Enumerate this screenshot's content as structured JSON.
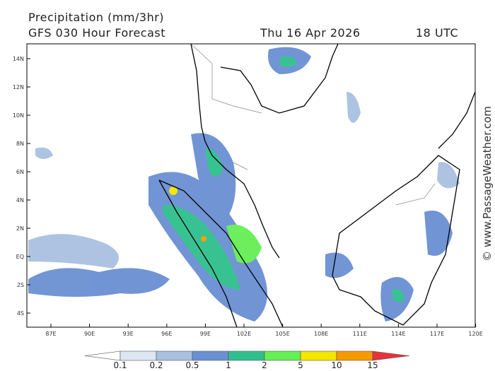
{
  "header": {
    "title": "Precipitation (mm/3hr)",
    "model": "GFS 030 Hour Forecast",
    "date": "Thu 16 Apr 2026",
    "time": "18 UTC"
  },
  "lat_labels": [
    "14N",
    "12N",
    "10N",
    "8N",
    "6N",
    "4N",
    "2N",
    "EQ",
    "2S",
    "4S"
  ],
  "lon_labels": [
    "87E",
    "90E",
    "93E",
    "96E",
    "99E",
    "102E",
    "105E",
    "108E",
    "111E",
    "114E",
    "117E",
    "120E"
  ],
  "colorbar": {
    "labels": [
      "0.1",
      "0.2",
      "0.5",
      "1",
      "2",
      "5",
      "10",
      "15"
    ],
    "colors": [
      "#ffffff",
      "#dde7f3",
      "#a9c0e0",
      "#6a8fd2",
      "#2fbf8c",
      "#66ee55",
      "#f3e600",
      "#f59a00",
      "#e6323c"
    ]
  },
  "watermark": "© www.PassageWeather.com"
}
